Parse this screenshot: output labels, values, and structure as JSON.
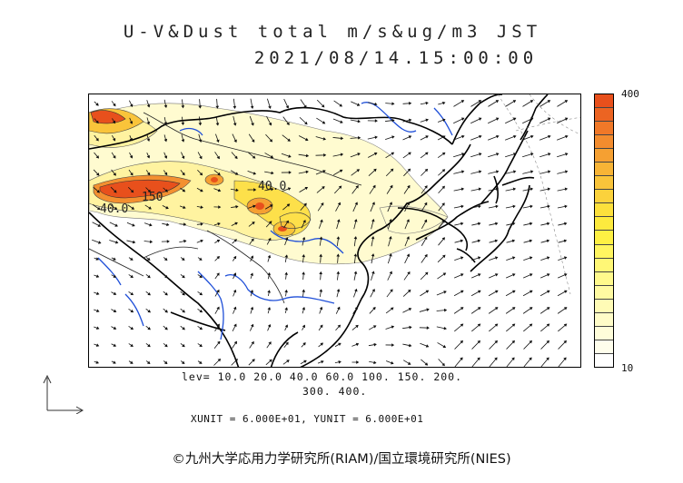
{
  "title": {
    "line1": "U-V&Dust total m/s&ug/m3 JST",
    "line2": "2021/08/14.15:00:00"
  },
  "colorbar": {
    "max_label": "400",
    "min_label": "10",
    "colors_top_to_bottom": [
      "#e8501c",
      "#ec6422",
      "#f07828",
      "#f38c2e",
      "#f5a032",
      "#f7b436",
      "#f9c43a",
      "#fbd23c",
      "#fce03c",
      "#fdea3e",
      "#fef044",
      "#fff560",
      "#fff776",
      "#fff98c",
      "#fffaa2",
      "#fffbb6",
      "#fffcc8",
      "#fffdda",
      "#fffeec",
      "#ffffff"
    ]
  },
  "contour_labels": [
    "40.0",
    "150",
    "40.0"
  ],
  "levels": {
    "line1": "lev= 10.0 20.0 40.0 60.0 100. 150. 200.",
    "line2": "300. 400."
  },
  "units": "XUNIT = 6.000E+01, YUNIT = 6.000E+01",
  "credit": "©九州大学応用力学研究所(RIAM)/国立環境研究所(NIES)"
}
